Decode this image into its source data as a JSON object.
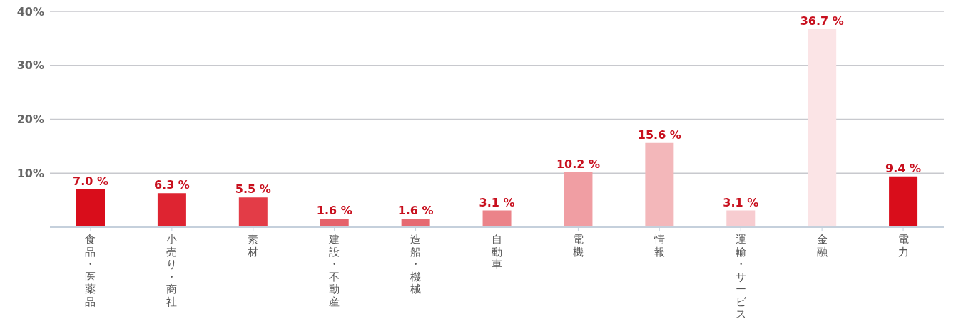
{
  "chart_data": {
    "type": "bar",
    "categories": [
      "食品・医薬品",
      "小売り・商社",
      "素材",
      "建設・不動産",
      "造船・機械",
      "自動車",
      "電機",
      "情報",
      "運輸・サービス",
      "金融",
      "電力"
    ],
    "values": [
      7.0,
      6.3,
      5.5,
      1.6,
      1.6,
      3.1,
      10.2,
      15.6,
      3.1,
      36.7,
      9.4
    ],
    "colors": [
      "#d90d1b",
      "#de2431",
      "#e33c47",
      "#e5626b",
      "#e66a72",
      "#eb8389",
      "#f09ea3",
      "#f3b7ba",
      "#f7ccd0",
      "#fbe4e6",
      "#d90d1b"
    ],
    "value_labels": [
      "7.0 %",
      "6.3 %",
      "5.5 %",
      "1.6 %",
      "1.6 %",
      "3.1 %",
      "10.2 %",
      "15.6 %",
      "3.1 %",
      "36.7 %",
      "9.4 %"
    ],
    "ylim": [
      0,
      40
    ],
    "yticks": [
      {
        "value": 0,
        "label": null
      },
      {
        "value": 10,
        "label": "10%"
      },
      {
        "value": 20,
        "label": "20%"
      },
      {
        "value": 30,
        "label": "30%"
      },
      {
        "value": 40,
        "label": "40%"
      }
    ],
    "grid": "y",
    "legend": false
  }
}
